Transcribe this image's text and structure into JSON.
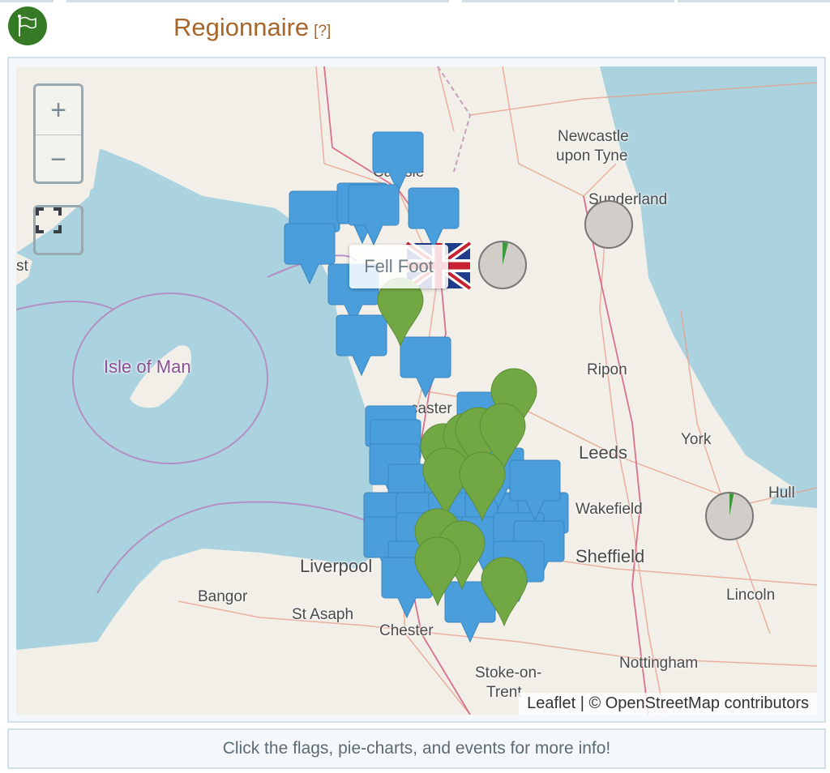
{
  "header": {
    "title": "Regionnaire",
    "help": "[?]",
    "icon": "flag-icon",
    "title_color": "#a8662a"
  },
  "map": {
    "zoom_in": "+",
    "zoom_out": "−",
    "tooltip": "Fell Foot",
    "attribution": {
      "leaflet": "Leaflet",
      "separator": " | © ",
      "osm": "OpenStreetMap contributors"
    },
    "places": [
      {
        "name": "Newcastle",
        "cls": ""
      },
      {
        "name": "upon Tyne",
        "cls": ""
      },
      {
        "name": "Sunderland",
        "cls": ""
      },
      {
        "name": "Carlisle",
        "cls": ""
      },
      {
        "name": "Isle of Man",
        "cls": "iom"
      },
      {
        "name": "Ripon",
        "cls": ""
      },
      {
        "name": "York",
        "cls": ""
      },
      {
        "name": "Leeds",
        "cls": "big"
      },
      {
        "name": "Hull",
        "cls": ""
      },
      {
        "name": "Wakefield",
        "cls": ""
      },
      {
        "name": "Sheffield",
        "cls": "big"
      },
      {
        "name": "Liverpool",
        "cls": "big"
      },
      {
        "name": "Bangor",
        "cls": ""
      },
      {
        "name": "St Asaph",
        "cls": ""
      },
      {
        "name": "Chester",
        "cls": ""
      },
      {
        "name": "Lincoln",
        "cls": ""
      },
      {
        "name": "Nottingham",
        "cls": ""
      },
      {
        "name": "Stoke-on-",
        "cls": ""
      },
      {
        "name": "Trent",
        "cls": ""
      },
      {
        "name": "st",
        "cls": ""
      },
      {
        "name": "caster",
        "cls": ""
      }
    ],
    "colors": {
      "water": "#aad3df",
      "land": "#f2efe9",
      "blue_marker": "#4a9edb",
      "green_marker": "#72a844",
      "pie": "#d2cdc8",
      "pie_slice": "#3c9a3c"
    }
  },
  "footer": {
    "text": "Click the flags, pie-charts, and events for more info!"
  }
}
